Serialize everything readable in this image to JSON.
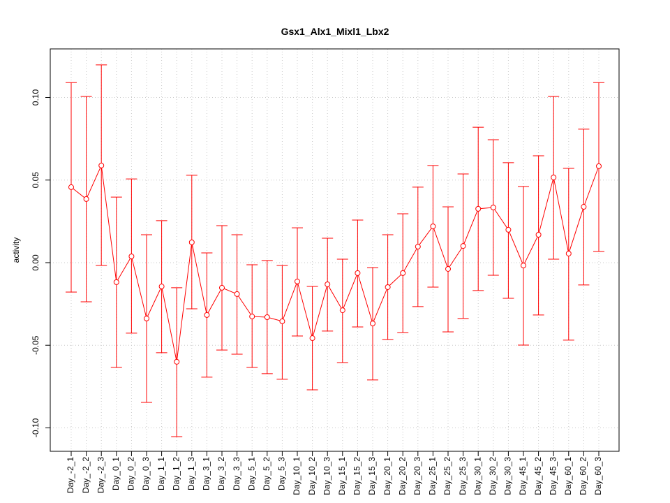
{
  "chart_data": {
    "type": "line",
    "title": "Gsx1_Alx1_Mixl1_Lbx2",
    "xlabel": "",
    "ylabel": "activity",
    "ylim": [
      -0.1142,
      0.1294
    ],
    "yticks": [
      -0.1,
      -0.05,
      0.0,
      0.05,
      0.1
    ],
    "ytick_labels": [
      "-0.10",
      "-0.05",
      "0.00",
      "0.05",
      "0.10"
    ],
    "grid": true,
    "color": "#ff0000",
    "categories": [
      "Day_-2_1",
      "Day_-2_2",
      "Day_-2_3",
      "Day_0_1",
      "Day_0_2",
      "Day_0_3",
      "Day_1_1",
      "Day_1_2",
      "Day_1_3",
      "Day_3_1",
      "Day_3_2",
      "Day_3_3",
      "Day_5_1",
      "Day_5_2",
      "Day_5_3",
      "Day_10_1",
      "Day_10_2",
      "Day_10_3",
      "Day_15_1",
      "Day_15_2",
      "Day_15_3",
      "Day_20_1",
      "Day_20_2",
      "Day_20_3",
      "Day_25_1",
      "Day_25_2",
      "Day_25_3",
      "Day_30_1",
      "Day_30_2",
      "Day_30_3",
      "Day_45_1",
      "Day_45_2",
      "Day_45_3",
      "Day_60_1",
      "Day_60_2",
      "Day_60_3"
    ],
    "values": [
      0.0457,
      0.0385,
      0.0588,
      -0.0118,
      0.0038,
      -0.0338,
      -0.0144,
      -0.06,
      0.0123,
      -0.0317,
      -0.0152,
      -0.019,
      -0.0326,
      -0.033,
      -0.0355,
      -0.0114,
      -0.0457,
      -0.0131,
      -0.0288,
      -0.0063,
      -0.0368,
      -0.0148,
      -0.0063,
      0.0097,
      0.022,
      -0.0038,
      0.0101,
      0.0326,
      0.0334,
      0.0199,
      -0.0017,
      0.0169,
      0.0516,
      0.0055,
      0.0338,
      0.0584
    ],
    "upper": [
      0.109,
      0.1006,
      0.1197,
      0.0397,
      0.0507,
      0.0169,
      0.0254,
      -0.0152,
      0.0529,
      0.0059,
      0.0224,
      0.0169,
      -0.0013,
      0.0013,
      -0.0017,
      0.0211,
      -0.0144,
      0.0148,
      0.0021,
      0.0258,
      -0.003,
      0.0169,
      0.0296,
      0.0457,
      0.0588,
      0.0338,
      0.0537,
      0.082,
      0.0744,
      0.0605,
      0.0461,
      0.0647,
      0.1006,
      0.0571,
      0.0808,
      0.109
    ],
    "lower": [
      -0.0178,
      -0.0237,
      -0.0017,
      -0.0634,
      -0.0427,
      -0.0846,
      -0.0545,
      -0.1053,
      -0.0279,
      -0.0693,
      -0.0529,
      -0.0554,
      -0.0634,
      -0.0672,
      -0.0706,
      -0.0444,
      -0.077,
      -0.0414,
      -0.0605,
      -0.0389,
      -0.071,
      -0.0465,
      -0.0423,
      -0.0266,
      -0.0148,
      -0.0419,
      -0.0338,
      -0.0169,
      -0.0076,
      -0.0216,
      -0.0499,
      -0.0317,
      0.0021,
      -0.0469,
      -0.0135,
      0.0068
    ]
  }
}
